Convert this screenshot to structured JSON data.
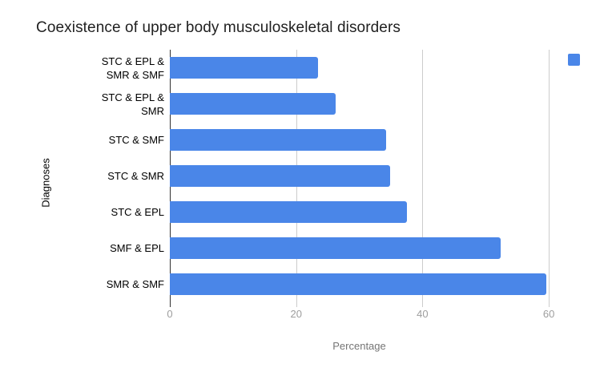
{
  "chart_data": {
    "type": "bar",
    "orientation": "horizontal",
    "title": "Coexistence of upper body musculoskeletal disorders",
    "xlabel": "Percentage",
    "ylabel": "Diagnoses",
    "categories": [
      "STC & EPL &\nSMR & SMF",
      "STC & EPL &\nSMR",
      "STC & SMF",
      "STC & SMR",
      "STC & EPL",
      "SMF & EPL",
      "SMR & SMF"
    ],
    "values": [
      23.4,
      26.3,
      34.2,
      34.9,
      37.6,
      52.4,
      59.6
    ],
    "x_ticks": [
      0,
      20,
      40,
      60
    ],
    "xlim": [
      0,
      61
    ],
    "grid": true,
    "legend_position": "top-right",
    "legend_truncated": true,
    "colors": {
      "bar": "#4A86E8",
      "gridline": "#CCCCCC",
      "axis_line": "#333333",
      "tick_label": "#9E9E9E",
      "axis_title_x": "#757575",
      "axis_title_y": "#000000",
      "category_label": "#000000",
      "title": "#212121",
      "background": "#FFFFFF"
    }
  }
}
